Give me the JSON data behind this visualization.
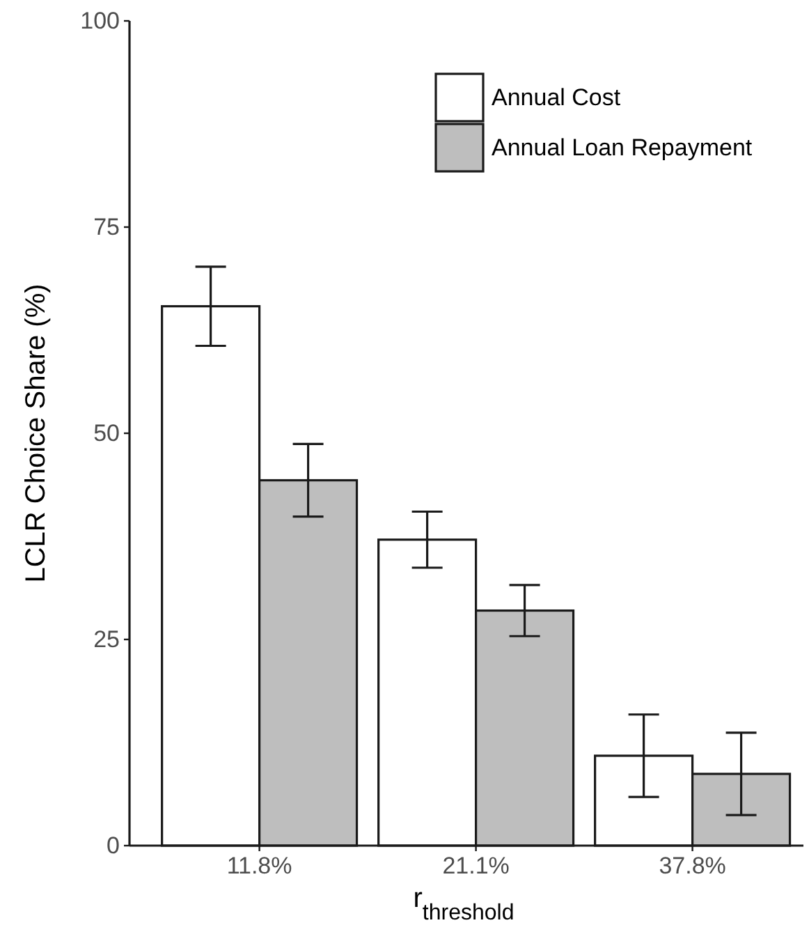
{
  "chart_data": {
    "type": "bar",
    "xlabel": "r$_{threshold}$",
    "ylabel": "LCLR Choice Share (%)",
    "categories": [
      "11.8%",
      "21.1%",
      "37.8%"
    ],
    "series": [
      {
        "name": "Annual Cost",
        "color": "#ffffff",
        "values": [
          65.4,
          37.1,
          10.9
        ],
        "errors": [
          4.8,
          3.4,
          5
        ]
      },
      {
        "name": "Annual Loan Repayment",
        "color": "#bebebe",
        "values": [
          44.3,
          28.5,
          8.7
        ],
        "errors": [
          4.4,
          3.1,
          5
        ]
      }
    ],
    "ylim": [
      0,
      100
    ],
    "yticks": [
      0,
      25,
      50,
      75,
      100
    ],
    "legend": "top right"
  }
}
